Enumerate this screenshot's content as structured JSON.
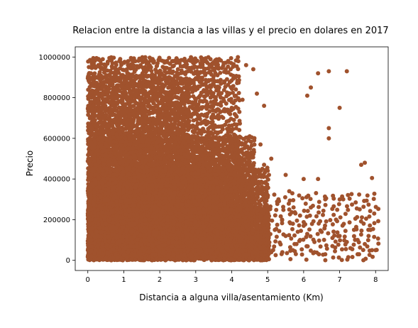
{
  "chart_data": {
    "type": "scatter",
    "title": "Relacion entre la distancia a las villas y el precio en dolares en 2017",
    "xlabel": "Distancia a alguna villa/asentamiento (Km)",
    "ylabel": "Precio",
    "xlim": [
      -0.35,
      8.35
    ],
    "ylim": [
      -50000,
      1050000
    ],
    "x_ticks": [
      0,
      1,
      2,
      3,
      4,
      5,
      6,
      7,
      8
    ],
    "y_ticks": [
      0,
      200000,
      400000,
      600000,
      800000,
      1000000
    ],
    "x_tick_labels": [
      "0",
      "1",
      "2",
      "3",
      "4",
      "5",
      "6",
      "7",
      "8"
    ],
    "y_tick_labels": [
      "0",
      "200000",
      "400000",
      "600000",
      "800000",
      "1000000"
    ],
    "grid": false,
    "marker_color": "#a0522d",
    "series": [
      {
        "points": [
          [
            0.1,
            980000
          ],
          [
            0.3,
            990000
          ],
          [
            0.6,
            995000
          ],
          [
            0.9,
            990000
          ],
          [
            1.2,
            995000
          ],
          [
            1.5,
            985000
          ],
          [
            1.8,
            990000
          ],
          [
            2.2,
            980000
          ],
          [
            2.6,
            985000
          ],
          [
            2.9,
            980000
          ],
          [
            3.2,
            975000
          ],
          [
            3.5,
            975000
          ],
          [
            3.9,
            980000
          ],
          [
            0.2,
            900000
          ],
          [
            0.5,
            880000
          ],
          [
            0.8,
            920000
          ],
          [
            1.1,
            860000
          ],
          [
            1.4,
            900000
          ],
          [
            1.7,
            870000
          ],
          [
            2.0,
            910000
          ],
          [
            2.4,
            860000
          ],
          [
            2.8,
            880000
          ],
          [
            3.1,
            900000
          ],
          [
            3.4,
            860000
          ],
          [
            3.8,
            880000
          ],
          [
            4.1,
            900000
          ],
          [
            4.4,
            960000
          ],
          [
            4.6,
            940000
          ],
          [
            0.1,
            780000
          ],
          [
            0.4,
            820000
          ],
          [
            0.7,
            760000
          ],
          [
            1.0,
            800000
          ],
          [
            1.3,
            740000
          ],
          [
            1.6,
            790000
          ],
          [
            1.9,
            760000
          ],
          [
            2.3,
            800000
          ],
          [
            2.7,
            750000
          ],
          [
            3.0,
            790000
          ],
          [
            3.3,
            760000
          ],
          [
            3.7,
            800000
          ],
          [
            4.0,
            750000
          ],
          [
            4.3,
            790000
          ],
          [
            4.7,
            820000
          ],
          [
            4.9,
            760000
          ],
          [
            0.1,
            650000
          ],
          [
            0.4,
            680000
          ],
          [
            0.8,
            620000
          ],
          [
            1.1,
            660000
          ],
          [
            1.5,
            630000
          ],
          [
            1.8,
            670000
          ],
          [
            2.1,
            620000
          ],
          [
            2.5,
            650000
          ],
          [
            2.9,
            610000
          ],
          [
            3.2,
            640000
          ],
          [
            3.6,
            600000
          ],
          [
            3.9,
            630000
          ],
          [
            4.2,
            580000
          ],
          [
            4.5,
            610000
          ],
          [
            4.8,
            570000
          ],
          [
            0.2,
            520000
          ],
          [
            0.5,
            540000
          ],
          [
            0.9,
            500000
          ],
          [
            1.2,
            530000
          ],
          [
            1.6,
            490000
          ],
          [
            2.0,
            520000
          ],
          [
            2.4,
            480000
          ],
          [
            2.8,
            510000
          ],
          [
            3.1,
            470000
          ],
          [
            3.5,
            500000
          ],
          [
            3.9,
            460000
          ],
          [
            4.2,
            490000
          ],
          [
            4.6,
            450000
          ],
          [
            4.9,
            470000
          ],
          [
            0.1,
            420000
          ],
          [
            0.4,
            380000
          ],
          [
            0.7,
            400000
          ],
          [
            1.1,
            360000
          ],
          [
            1.4,
            410000
          ],
          [
            1.8,
            370000
          ],
          [
            2.2,
            400000
          ],
          [
            2.6,
            360000
          ],
          [
            3.0,
            390000
          ],
          [
            3.4,
            350000
          ],
          [
            3.8,
            380000
          ],
          [
            4.1,
            340000
          ],
          [
            4.5,
            370000
          ],
          [
            4.8,
            330000
          ],
          [
            5.0,
            360000
          ],
          [
            0.2,
            300000
          ],
          [
            0.6,
            280000
          ],
          [
            1.0,
            310000
          ],
          [
            1.3,
            270000
          ],
          [
            1.7,
            300000
          ],
          [
            2.1,
            260000
          ],
          [
            2.5,
            290000
          ],
          [
            2.9,
            250000
          ],
          [
            3.3,
            280000
          ],
          [
            3.7,
            240000
          ],
          [
            4.0,
            270000
          ],
          [
            4.4,
            230000
          ],
          [
            4.7,
            260000
          ],
          [
            5.0,
            220000
          ],
          [
            0.1,
            200000
          ],
          [
            0.5,
            180000
          ],
          [
            0.9,
            210000
          ],
          [
            1.2,
            170000
          ],
          [
            1.6,
            200000
          ],
          [
            2.0,
            160000
          ],
          [
            2.4,
            190000
          ],
          [
            2.8,
            150000
          ],
          [
            3.2,
            180000
          ],
          [
            3.6,
            140000
          ],
          [
            4.0,
            170000
          ],
          [
            4.3,
            130000
          ],
          [
            4.7,
            160000
          ],
          [
            5.0,
            150000
          ],
          [
            0.1,
            100000
          ],
          [
            0.4,
            80000
          ],
          [
            0.8,
            110000
          ],
          [
            1.2,
            70000
          ],
          [
            1.6,
            100000
          ],
          [
            2.0,
            60000
          ],
          [
            2.4,
            90000
          ],
          [
            2.8,
            50000
          ],
          [
            3.2,
            80000
          ],
          [
            3.6,
            40000
          ],
          [
            4.0,
            70000
          ],
          [
            4.4,
            30000
          ],
          [
            4.8,
            60000
          ],
          [
            5.1,
            40000
          ],
          [
            0.1,
            20000
          ],
          [
            0.5,
            10000
          ],
          [
            1.0,
            25000
          ],
          [
            1.5,
            15000
          ],
          [
            2.0,
            5000
          ],
          [
            2.5,
            20000
          ],
          [
            3.0,
            10000
          ],
          [
            3.5,
            15000
          ],
          [
            4.0,
            5000
          ],
          [
            4.5,
            10000
          ],
          [
            4.8,
            0
          ],
          [
            5.2,
            150000
          ],
          [
            5.3,
            300000
          ],
          [
            5.4,
            200000
          ],
          [
            5.5,
            120000
          ],
          [
            5.6,
            250000
          ],
          [
            5.7,
            180000
          ],
          [
            5.8,
            80000
          ],
          [
            5.9,
            220000
          ],
          [
            6.0,
            400000
          ],
          [
            6.1,
            810000
          ],
          [
            6.1,
            130000
          ],
          [
            6.2,
            850000
          ],
          [
            6.2,
            260000
          ],
          [
            6.3,
            90000
          ],
          [
            6.4,
            920000
          ],
          [
            6.4,
            400000
          ],
          [
            6.5,
            140000
          ],
          [
            6.6,
            300000
          ],
          [
            6.7,
            930000
          ],
          [
            6.7,
            600000
          ],
          [
            6.7,
            650000
          ],
          [
            6.8,
            70000
          ],
          [
            6.9,
            200000
          ],
          [
            7.0,
            750000
          ],
          [
            7.0,
            120000
          ],
          [
            7.1,
            300000
          ],
          [
            7.2,
            930000
          ],
          [
            7.3,
            60000
          ],
          [
            7.4,
            150000
          ],
          [
            7.5,
            30000
          ],
          [
            7.6,
            470000
          ],
          [
            7.7,
            480000
          ],
          [
            7.7,
            80000
          ],
          [
            7.8,
            150000
          ],
          [
            7.9,
            405000
          ],
          [
            7.9,
            50000
          ],
          [
            8.0,
            50000
          ],
          [
            5.1,
            500000
          ],
          [
            5.5,
            420000
          ],
          [
            5.6,
            340000
          ],
          [
            5.7,
            50000
          ],
          [
            5.9,
            100000
          ],
          [
            6.0,
            170000
          ],
          [
            6.3,
            40000
          ],
          [
            6.6,
            30000
          ],
          [
            6.8,
            110000
          ],
          [
            7.2,
            90000
          ],
          [
            7.5,
            100000
          ]
        ]
      }
    ],
    "dense_regions": [
      {
        "x_range": [
          0.0,
          4.2
        ],
        "y_range": [
          0,
          1000000
        ],
        "density": 14
      },
      {
        "x_range": [
          0.0,
          2.8
        ],
        "y_range": [
          0,
          900000
        ],
        "density": 14
      },
      {
        "x_range": [
          0.0,
          4.6
        ],
        "y_range": [
          0,
          600000
        ],
        "density": 14
      },
      {
        "x_range": [
          0.0,
          5.0
        ],
        "y_range": [
          0,
          450000
        ],
        "density": 12
      },
      {
        "x_range": [
          0.0,
          5.0
        ],
        "y_range": [
          0,
          250000
        ],
        "density": 12
      },
      {
        "x_range": [
          0.0,
          3.6
        ],
        "y_range": [
          0,
          970000
        ],
        "density": 10
      },
      {
        "x_range": [
          5.0,
          8.0
        ],
        "y_range": [
          0,
          320000
        ],
        "density": 5
      }
    ]
  }
}
